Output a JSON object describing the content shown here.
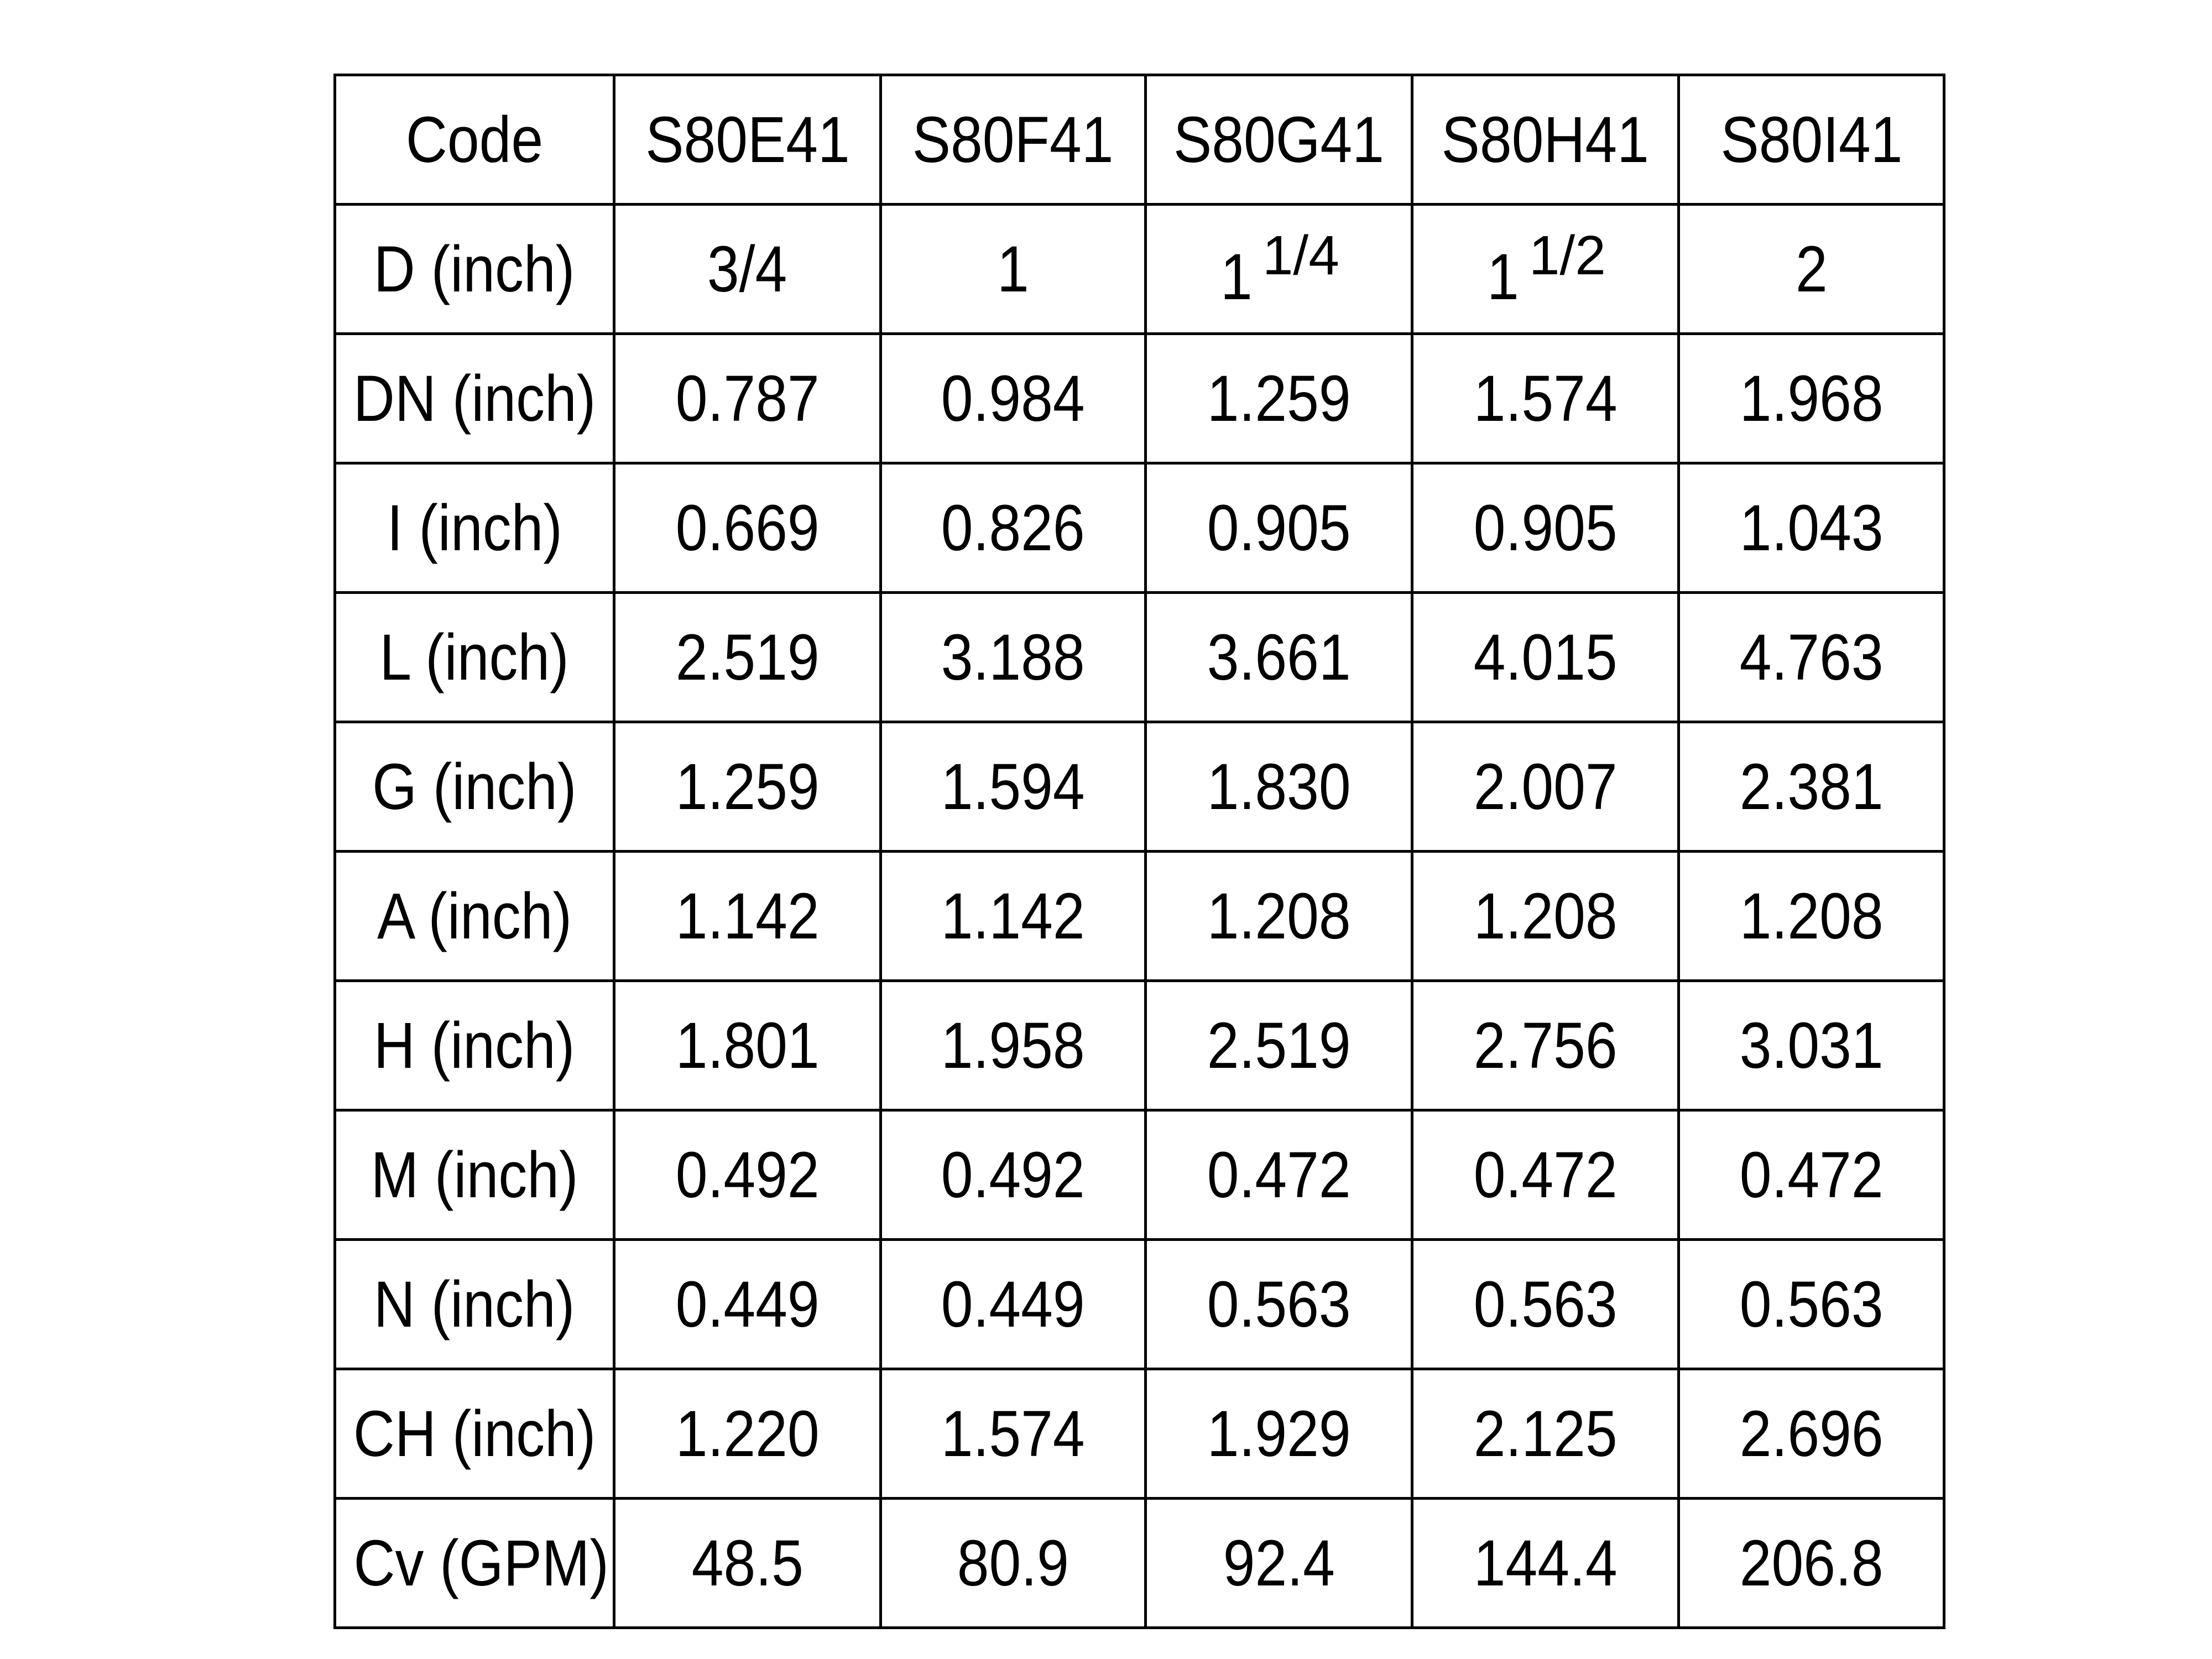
{
  "table": {
    "rows": [
      [
        "Code",
        "S80E41",
        "S80F41",
        "S80G41",
        "S80H41",
        "S80I41"
      ],
      [
        "D (inch)",
        "3/4",
        "1",
        {
          "whole": "1",
          "fraction": "1/4"
        },
        {
          "whole": "1",
          "fraction": "1/2"
        },
        "2"
      ],
      [
        "DN (inch)",
        "0.787",
        "0.984",
        "1.259",
        "1.574",
        "1.968"
      ],
      [
        "I (inch)",
        "0.669",
        "0.826",
        "0.905",
        "0.905",
        "1.043"
      ],
      [
        "L (inch)",
        "2.519",
        "3.188",
        "3.661",
        "4.015",
        "4.763"
      ],
      [
        "G (inch)",
        "1.259",
        "1.594",
        "1.830",
        "2.007",
        "2.381"
      ],
      [
        "A (inch)",
        "1.142",
        "1.142",
        "1.208",
        "1.208",
        "1.208"
      ],
      [
        "H (inch)",
        "1.801",
        "1.958",
        "2.519",
        "2.756",
        "3.031"
      ],
      [
        "M (inch)",
        "0.492",
        "0.492",
        "0.472",
        "0.472",
        "0.472"
      ],
      [
        "N (inch)",
        "0.449",
        "0.449",
        "0.563",
        "0.563",
        "0.563"
      ],
      [
        "CH (inch)",
        "1.220",
        "1.574",
        "1.929",
        "2.125",
        "2.696"
      ],
      [
        "Cv (GPM)",
        "48.5",
        "80.9",
        "92.4",
        "144.4",
        "206.8"
      ]
    ]
  }
}
